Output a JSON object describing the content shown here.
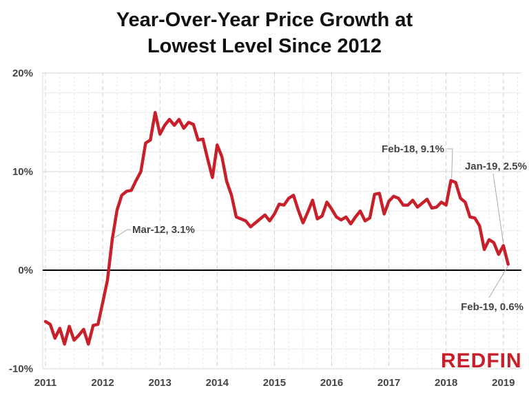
{
  "chart_data": {
    "type": "line",
    "title": "Year-Over-Year Price Growth at Lowest Level Since 2012",
    "title_lines": [
      "Year-Over-Year Price Growth at",
      "Lowest Level Since 2012"
    ],
    "xlabel": "",
    "ylabel": "",
    "x_start": "2011-01",
    "x_frequency": "monthly",
    "xlim": [
      2011,
      2019.25
    ],
    "ylim": [
      -10,
      20
    ],
    "x_ticks": [
      "2011",
      "2012",
      "2013",
      "2014",
      "2015",
      "2016",
      "2017",
      "2018",
      "2019"
    ],
    "y_ticks": [
      "-10%",
      "0%",
      "10%",
      "20%"
    ],
    "y_tick_values": [
      -10,
      0,
      10,
      20
    ],
    "grid": true,
    "zero_line": true,
    "line_color": "#c8202a",
    "series": [
      {
        "values": [
          -5.2,
          -5.5,
          -6.9,
          -5.9,
          -7.5,
          -5.7,
          -7.1,
          -6.6,
          -6.0,
          -7.5,
          -5.6,
          -5.5,
          -3.3,
          -1.0,
          3.1,
          6.1,
          7.6,
          8.0,
          8.1,
          9.1,
          10.0,
          12.9,
          13.2,
          16.0,
          13.8,
          14.7,
          15.3,
          14.7,
          15.3,
          14.4,
          15.0,
          14.8,
          13.2,
          13.3,
          11.3,
          9.4,
          12.7,
          11.5,
          9.0,
          7.6,
          5.4,
          5.2,
          5.0,
          4.4,
          4.8,
          5.2,
          5.6,
          5.0,
          5.7,
          6.7,
          6.6,
          7.3,
          7.6,
          6.1,
          4.8,
          5.9,
          7.1,
          5.2,
          5.5,
          6.9,
          6.2,
          5.4,
          5.1,
          5.4,
          4.7,
          5.4,
          6.0,
          5.0,
          5.3,
          7.7,
          7.8,
          5.7,
          7.0,
          7.5,
          7.3,
          6.6,
          6.6,
          7.1,
          6.4,
          6.8,
          7.2,
          6.3,
          6.4,
          6.9,
          6.6,
          9.1,
          8.9,
          7.3,
          6.9,
          5.4,
          5.3,
          4.5,
          2.1,
          3.1,
          2.8,
          1.6,
          2.5,
          0.6
        ]
      }
    ],
    "annotations": [
      {
        "text": "Mar-12, 3.1%",
        "month": "2012-03",
        "value": 3.1
      },
      {
        "text": "Feb-18, 9.1%",
        "month": "2018-02",
        "value": 9.1
      },
      {
        "text": "Jan-19, 2.5%",
        "month": "2019-01",
        "value": 2.5
      },
      {
        "text": "Feb-19, 0.6%",
        "month": "2019-02",
        "value": 0.6
      }
    ]
  },
  "logo": "REDFIN",
  "brand_color": "#c8202a"
}
